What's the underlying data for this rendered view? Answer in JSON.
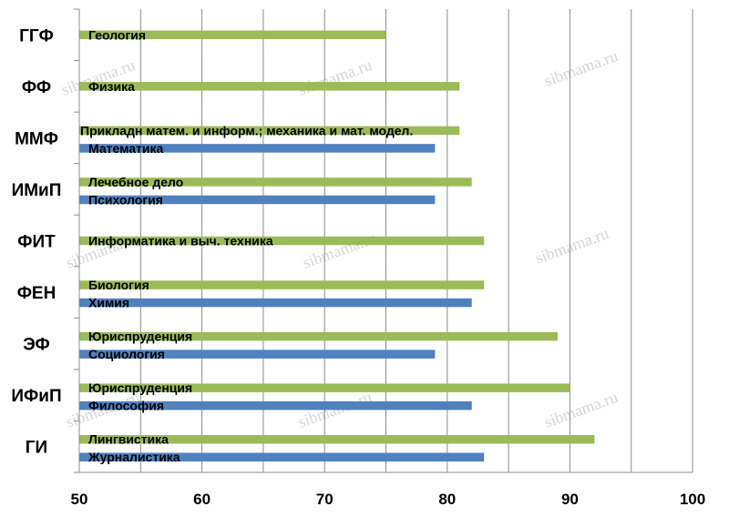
{
  "chart_data": {
    "type": "bar",
    "orientation": "horizontal",
    "xlim": [
      50,
      100
    ],
    "major_ticks": [
      50,
      60,
      70,
      80,
      90,
      100
    ],
    "minor_tick_step": 5,
    "grid": "vertical",
    "colors": {
      "green": "#9bbb59",
      "blue": "#4f81bd"
    },
    "categories": [
      {
        "name": "ГГФ",
        "bars": [
          {
            "label": "Геология",
            "value": 75,
            "color": "green"
          }
        ]
      },
      {
        "name": "ФФ",
        "bars": [
          {
            "label": "Физика",
            "value": 81,
            "color": "green"
          }
        ]
      },
      {
        "name": "ММФ",
        "bars": [
          {
            "label": "Прикладн матем. и информ.; механика и мат. модел.",
            "value": 81,
            "color": "green"
          },
          {
            "label": "Математика",
            "value": 79,
            "color": "blue"
          }
        ]
      },
      {
        "name": "ИМиП",
        "bars": [
          {
            "label": "Лечебное дело",
            "value": 82,
            "color": "green"
          },
          {
            "label": "Психология",
            "value": 79,
            "color": "blue"
          }
        ]
      },
      {
        "name": "ФИТ",
        "bars": [
          {
            "label": "Информатика и выч. техника",
            "value": 83,
            "color": "green"
          }
        ]
      },
      {
        "name": "ФЕН",
        "bars": [
          {
            "label": "Биология",
            "value": 83,
            "color": "green"
          },
          {
            "label": "Химия",
            "value": 82,
            "color": "blue"
          }
        ]
      },
      {
        "name": "ЭФ",
        "bars": [
          {
            "label": "Юриспруденция",
            "value": 89,
            "color": "green"
          },
          {
            "label": "Социология",
            "value": 79,
            "color": "blue"
          }
        ]
      },
      {
        "name": "ИФиП",
        "bars": [
          {
            "label": "Юриспруденция",
            "value": 90,
            "color": "green"
          },
          {
            "label": "Философия",
            "value": 82,
            "color": "blue"
          }
        ]
      },
      {
        "name": "ГИ",
        "bars": [
          {
            "label": "Лингвистика",
            "value": 92,
            "color": "green"
          },
          {
            "label": "Журналистика",
            "value": 83,
            "color": "blue"
          }
        ]
      }
    ],
    "watermark": "sibmama.ru"
  }
}
